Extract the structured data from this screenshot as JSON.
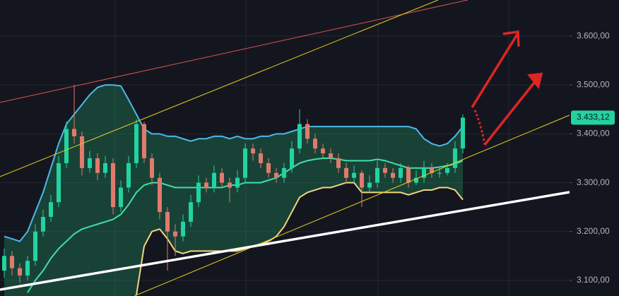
{
  "chart_data": {
    "type": "candlestick",
    "open": [
      3120,
      3150,
      3125,
      3110,
      3140,
      3200,
      3230,
      3260,
      3340,
      3410,
      3395,
      3330,
      3350,
      3320,
      3340,
      3250,
      3290,
      3340,
      3420,
      3350,
      3310,
      3240,
      3200,
      3190,
      3220,
      3260,
      3300,
      3290,
      3320,
      3300,
      3290,
      3310,
      3370,
      3360,
      3340,
      3320,
      3310,
      3330,
      3370,
      3420,
      3390,
      3370,
      3360,
      3350,
      3330,
      3310,
      3320,
      3290,
      3300,
      3330,
      3320,
      3310,
      3330,
      3300,
      3310,
      3330,
      3320,
      3320,
      3330,
      3370
    ],
    "high": [
      3165,
      3160,
      3135,
      3150,
      3215,
      3245,
      3275,
      3355,
      3425,
      3500,
      3405,
      3365,
      3360,
      3355,
      3350,
      3305,
      3355,
      3430,
      3425,
      3360,
      3320,
      3250,
      3215,
      3235,
      3275,
      3315,
      3310,
      3335,
      3330,
      3310,
      3325,
      3380,
      3380,
      3370,
      3350,
      3330,
      3340,
      3385,
      3450,
      3430,
      3400,
      3380,
      3370,
      3360,
      3340,
      3335,
      3325,
      3315,
      3345,
      3340,
      3330,
      3340,
      3335,
      3325,
      3345,
      3340,
      3330,
      3340,
      3385,
      3440
    ],
    "low": [
      3105,
      3110,
      3095,
      3100,
      3130,
      3190,
      3220,
      3250,
      3330,
      3380,
      3315,
      3320,
      3305,
      3310,
      3235,
      3240,
      3280,
      3330,
      3340,
      3295,
      3225,
      3120,
      3150,
      3180,
      3210,
      3250,
      3280,
      3280,
      3290,
      3260,
      3280,
      3300,
      3345,
      3330,
      3310,
      3300,
      3300,
      3320,
      3360,
      3380,
      3360,
      3350,
      3340,
      3320,
      3300,
      3300,
      3250,
      3280,
      3290,
      3310,
      3300,
      3300,
      3290,
      3295,
      3300,
      3310,
      3310,
      3315,
      3320,
      3360
    ],
    "close": [
      3150,
      3125,
      3110,
      3140,
      3200,
      3230,
      3260,
      3340,
      3410,
      3395,
      3330,
      3350,
      3320,
      3340,
      3250,
      3290,
      3340,
      3420,
      3350,
      3310,
      3240,
      3200,
      3190,
      3220,
      3260,
      3300,
      3290,
      3320,
      3300,
      3290,
      3310,
      3370,
      3360,
      3340,
      3320,
      3310,
      3330,
      3370,
      3420,
      3390,
      3370,
      3360,
      3350,
      3330,
      3310,
      3320,
      3290,
      3300,
      3330,
      3320,
      3310,
      3330,
      3300,
      3310,
      3330,
      3320,
      3320,
      3330,
      3370,
      3433.12
    ],
    "up_color": "#22d3a0",
    "down_color": "#e07b6c",
    "overlays": [
      {
        "color": "#4fb7ea",
        "values": [
          3190,
          3185,
          3180,
          3200,
          3240,
          3280,
          3330,
          3380,
          3420,
          3440,
          3460,
          3480,
          3495,
          3500,
          3500,
          3498,
          3470,
          3440,
          3410,
          3400,
          3400,
          3395,
          3395,
          3390,
          3385,
          3390,
          3390,
          3395,
          3395,
          3390,
          3395,
          3390,
          3390,
          3395,
          3395,
          3400,
          3400,
          3405,
          3410,
          3415,
          3415,
          3415,
          3415,
          3415,
          3415,
          3415,
          3415,
          3415,
          3415,
          3415,
          3415,
          3415,
          3415,
          3410,
          3390,
          3380,
          3375,
          3380,
          3395,
          3415
        ]
      },
      {
        "color": "#3fe0a8",
        "values": [
          null,
          null,
          null,
          3075,
          3100,
          3120,
          3145,
          3165,
          3180,
          3195,
          3205,
          3210,
          3215,
          3220,
          3225,
          3235,
          3255,
          3280,
          3295,
          3300,
          3300,
          3295,
          3290,
          3290,
          3290,
          3290,
          3290,
          3290,
          3290,
          3295,
          3295,
          3300,
          3300,
          3300,
          3305,
          3310,
          3320,
          3330,
          3340,
          3345,
          3348,
          3350,
          3350,
          3348,
          3345,
          3345,
          3345,
          3345,
          3348,
          3345,
          3340,
          3335,
          3330,
          3330,
          3330,
          3330,
          3332,
          3335,
          3338,
          3345
        ]
      },
      {
        "color": "#f2d57e",
        "values": [
          null,
          null,
          null,
          null,
          null,
          null,
          null,
          null,
          null,
          null,
          null,
          null,
          null,
          null,
          null,
          null,
          null,
          3070,
          3170,
          3200,
          3205,
          3185,
          3160,
          3155,
          3160,
          3160,
          3160,
          3160,
          3160,
          3160,
          3160,
          3165,
          3170,
          3175,
          3180,
          3190,
          3210,
          3240,
          3270,
          3280,
          3285,
          3290,
          3290,
          3295,
          3300,
          3300,
          3280,
          3280,
          3280,
          3280,
          3280,
          3280,
          3275,
          3280,
          3285,
          3285,
          3290,
          3290,
          3285,
          3265
        ]
      }
    ],
    "ylim": [
      3068,
      3674
    ],
    "yticks": [
      {
        "value": 3100,
        "label": "3.100,00"
      },
      {
        "value": 3200,
        "label": "3.200,00"
      },
      {
        "value": 3300,
        "label": "3.300,00"
      },
      {
        "value": 3400,
        "label": "3.400,00"
      },
      {
        "value": 3500,
        "label": "3.500,00"
      },
      {
        "value": 3600,
        "label": "3.600,00"
      }
    ],
    "grid": true,
    "last_price": {
      "value": 3433.12,
      "label": "3.433,12"
    }
  }
}
